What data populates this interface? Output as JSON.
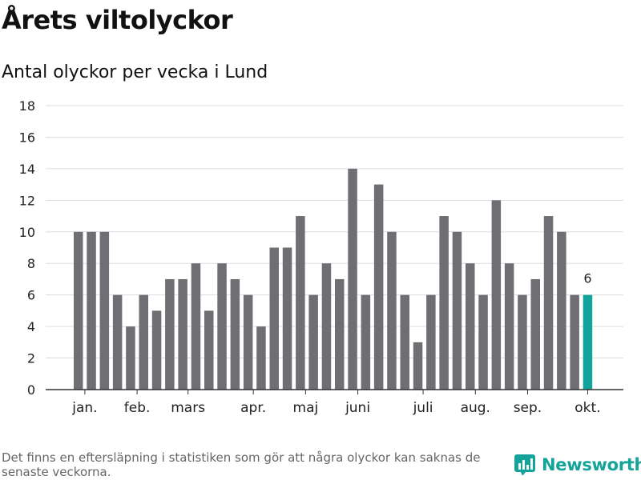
{
  "title": "Årets viltolyckor",
  "subtitle": "Antal olyckor per vecka i Lund",
  "footnote": "Det finns en eftersläpning i statistiken som gör att några olyckor kan saknas de senaste veckorna.",
  "brand": {
    "name": "Newsworthy",
    "icon": "newsworthy-logo-icon",
    "color": "#13a39a"
  },
  "colors": {
    "bar": "#6f6e72",
    "highlight": "#13a39a",
    "grid": "#dddddd",
    "axis": "#333333"
  },
  "chart_data": {
    "type": "bar",
    "title": "",
    "xlabel": "",
    "ylabel": "",
    "ylim": [
      0,
      18
    ],
    "yticks": [
      0,
      2,
      4,
      6,
      8,
      10,
      12,
      14,
      16,
      18
    ],
    "grid": true,
    "values": [
      10,
      10,
      10,
      6,
      4,
      6,
      5,
      7,
      7,
      8,
      5,
      8,
      7,
      6,
      4,
      9,
      9,
      11,
      6,
      8,
      7,
      14,
      6,
      13,
      10,
      6,
      3,
      6,
      11,
      10,
      8,
      6,
      12,
      8,
      6,
      7,
      11,
      10,
      6,
      6
    ],
    "highlight_index": 39,
    "highlight_label": "6",
    "month_labels": [
      {
        "label": "jan.",
        "bar_index": 0.5
      },
      {
        "label": "feb.",
        "bar_index": 4.5
      },
      {
        "label": "mars",
        "bar_index": 8.4
      },
      {
        "label": "apr.",
        "bar_index": 13.4
      },
      {
        "label": "maj",
        "bar_index": 17.4
      },
      {
        "label": "juni",
        "bar_index": 21.4
      },
      {
        "label": "juli",
        "bar_index": 26.4
      },
      {
        "label": "aug.",
        "bar_index": 30.4
      },
      {
        "label": "sep.",
        "bar_index": 34.4
      },
      {
        "label": "okt.",
        "bar_index": 39.0
      }
    ]
  }
}
